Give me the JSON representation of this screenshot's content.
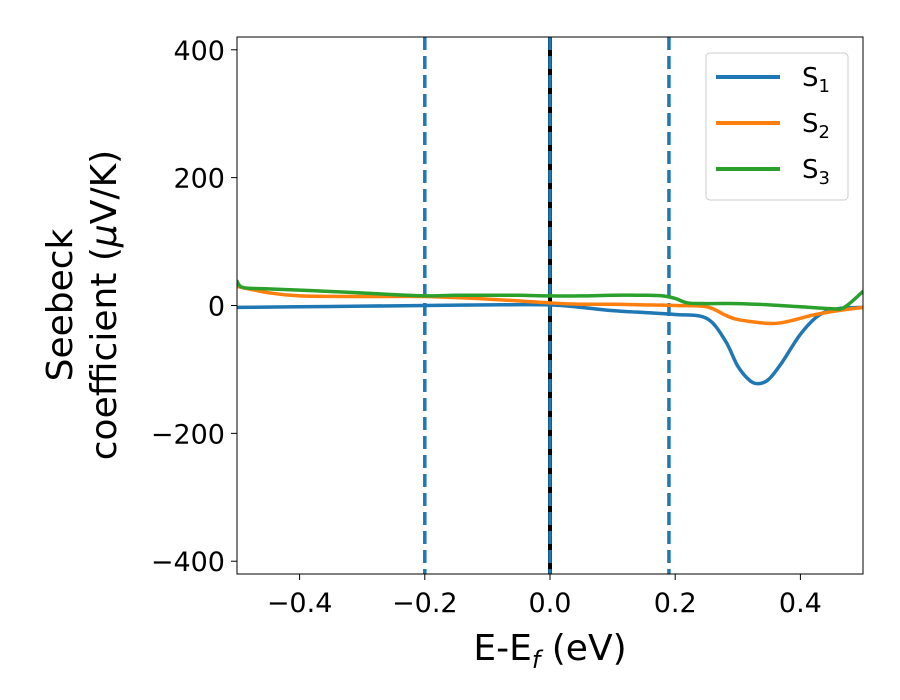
{
  "chart_data": {
    "type": "line",
    "xlabel": {
      "main": "E-E",
      "sub": "f",
      "unit": " (eV)"
    },
    "ylabel": {
      "line1": "Seebeck",
      "line2_pre": "coefficient  (",
      "mu": "μ",
      "line2_post": "V/K)"
    },
    "xlim": [
      -0.5,
      0.5
    ],
    "ylim": [
      -420,
      420
    ],
    "xticks": [
      -0.4,
      -0.2,
      0.0,
      0.2,
      0.4
    ],
    "xtick_labels": [
      "−0.4",
      "−0.2",
      "0.0",
      "0.2",
      "0.4"
    ],
    "yticks": [
      400,
      200,
      0,
      -200,
      -400
    ],
    "ytick_labels": [
      "400",
      "200",
      "0",
      "−200",
      "−400"
    ],
    "grid": false,
    "legend_position": "top-right",
    "vlines": [
      {
        "x": -0.2,
        "style": "dashed",
        "color": "#1f77b4"
      },
      {
        "x": 0.0,
        "style": "solid",
        "color": "#000000"
      },
      {
        "x": 0.0,
        "style": "dashed",
        "color": "#1f77b4"
      },
      {
        "x": 0.19,
        "style": "dashed",
        "color": "#1f77b4"
      }
    ],
    "series": [
      {
        "name": "S",
        "sub": "1",
        "color": "#1f77b4",
        "x": [
          -0.5,
          -0.4,
          -0.3,
          -0.2,
          -0.1,
          0.0,
          0.05,
          0.1,
          0.15,
          0.2,
          0.25,
          0.28,
          0.3,
          0.32,
          0.335,
          0.35,
          0.37,
          0.4,
          0.43,
          0.46,
          0.5
        ],
        "y": [
          -3,
          -2,
          -1,
          0,
          1,
          1,
          -3,
          -8,
          -11,
          -14,
          -20,
          -55,
          -95,
          -118,
          -122,
          -115,
          -90,
          -45,
          -15,
          -5,
          -3
        ]
      },
      {
        "name": "S",
        "sub": "2",
        "color": "#ff7f0e",
        "x": [
          -0.5,
          -0.45,
          -0.4,
          -0.3,
          -0.2,
          -0.1,
          0.0,
          0.05,
          0.1,
          0.15,
          0.2,
          0.25,
          0.28,
          0.3,
          0.35,
          0.38,
          0.42,
          0.46,
          0.5
        ],
        "y": [
          30,
          20,
          15,
          14,
          14,
          10,
          4,
          2,
          2,
          1,
          0,
          -2,
          -15,
          -22,
          -28,
          -25,
          -15,
          -8,
          -3
        ]
      },
      {
        "name": "S",
        "sub": "3",
        "color": "#2ca02c",
        "x": [
          -0.5,
          -0.49,
          -0.45,
          -0.35,
          -0.25,
          -0.2,
          -0.15,
          -0.1,
          -0.05,
          0.0,
          0.05,
          0.1,
          0.15,
          0.18,
          0.2,
          0.22,
          0.25,
          0.3,
          0.35,
          0.4,
          0.45,
          0.47,
          0.5
        ],
        "y": [
          38,
          28,
          26,
          22,
          17,
          15,
          16,
          16,
          16,
          15,
          15,
          16,
          16,
          15,
          11,
          4,
          3,
          3,
          1,
          -2,
          -5,
          -3,
          22
        ]
      }
    ]
  }
}
